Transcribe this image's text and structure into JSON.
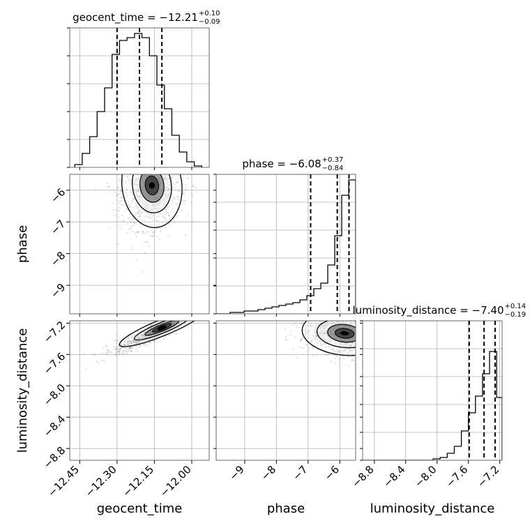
{
  "chart_data": {
    "type": "corner",
    "parameters": [
      "geocent_time",
      "phase",
      "luminosity_distance"
    ],
    "titles": [
      {
        "param": "geocent_time",
        "label": "geocent_time = ",
        "median": "−12.21",
        "plus": "+0.10",
        "minus": "−0.09"
      },
      {
        "param": "phase",
        "label": "phase = ",
        "median": "−6.08",
        "plus": "+0.37",
        "minus": "−0.84"
      },
      {
        "param": "luminosity_distance",
        "label": "luminosity_distance = ",
        "median": "−7.40",
        "plus": "+0.14",
        "minus": "−0.19"
      }
    ],
    "axes": {
      "geocent_time": {
        "range": [
          -12.49,
          -11.93
        ],
        "ticks": [
          -12.45,
          -12.3,
          -12.15,
          -12.0
        ],
        "tick_labels": [
          "−12.45",
          "−12.30",
          "−12.15",
          "−12.00"
        ]
      },
      "phase": {
        "range": [
          -9.9,
          -5.5
        ],
        "ticks": [
          -9,
          -8,
          -7,
          -6
        ],
        "tick_labels": [
          "−9",
          "−8",
          "−7",
          "−6"
        ]
      },
      "luminosity_distance": {
        "range": [
          -8.95,
          -7.17
        ],
        "ticks": [
          -8.8,
          -8.4,
          -8.0,
          -7.6,
          -7.2
        ],
        "tick_labels": [
          "−8.8",
          "−8.4",
          "−8.0",
          "−7.6",
          "−7.2"
        ]
      }
    },
    "histograms": [
      {
        "param": "geocent_time",
        "quantiles": [
          -12.3,
          -12.21,
          -12.12
        ],
        "bin_edges": [
          -12.47,
          -12.44,
          -12.41,
          -12.38,
          -12.35,
          -12.32,
          -12.29,
          -12.26,
          -12.23,
          -12.2,
          -12.17,
          -12.14,
          -12.11,
          -12.08,
          -12.05,
          -12.02,
          -11.99,
          -11.96
        ],
        "counts": [
          0.02,
          0.1,
          0.22,
          0.4,
          0.57,
          0.81,
          0.91,
          0.93,
          0.96,
          0.93,
          0.8,
          0.59,
          0.42,
          0.23,
          0.11,
          0.04,
          0.01
        ]
      },
      {
        "param": "phase",
        "quantiles": [
          -6.92,
          -6.08,
          -5.71
        ],
        "bin_edges": [
          -9.9,
          -9.68,
          -9.46,
          -9.24,
          -9.02,
          -8.8,
          -8.58,
          -8.36,
          -8.14,
          -7.92,
          -7.7,
          -7.48,
          -7.26,
          -7.04,
          -6.82,
          -6.6,
          -6.38,
          -6.16,
          -5.94,
          -5.72,
          -5.5
        ],
        "counts": [
          0.0,
          0.0,
          0.01,
          0.01,
          0.02,
          0.02,
          0.03,
          0.04,
          0.05,
          0.06,
          0.07,
          0.08,
          0.1,
          0.13,
          0.18,
          0.22,
          0.35,
          0.56,
          0.85,
          0.96
        ]
      },
      {
        "param": "luminosity_distance",
        "quantiles": [
          -7.59,
          -7.4,
          -7.26
        ],
        "bin_edges": [
          -8.95,
          -8.86,
          -8.77,
          -8.68,
          -8.59,
          -8.5,
          -8.41,
          -8.32,
          -8.23,
          -8.14,
          -8.05,
          -7.96,
          -7.87,
          -7.78,
          -7.69,
          -7.6,
          -7.51,
          -7.42,
          -7.33,
          -7.24,
          -7.17
        ],
        "counts": [
          0.0,
          0.0,
          0.0,
          0.0,
          0.0,
          0.0,
          0.0,
          0.0,
          0.0,
          0.0,
          0.01,
          0.02,
          0.05,
          0.1,
          0.21,
          0.34,
          0.46,
          0.62,
          0.78,
          0.45
        ]
      }
    ],
    "joint": [
      {
        "x": "geocent_time",
        "y": "phase",
        "peak": [
          -12.16,
          -5.85
        ],
        "cov": [
          [
            0.0036,
            0.004
          ],
          [
            0.004,
            0.45
          ]
        ],
        "truncate_y_max": -5.55
      },
      {
        "x": "geocent_time",
        "y": "luminosity_distance",
        "peak": [
          -12.12,
          -7.26
        ],
        "cov": [
          [
            0.0084,
            0.0122
          ],
          [
            0.0122,
            0.0204
          ]
        ],
        "truncate_y_max": -7.18
      },
      {
        "x": "phase",
        "y": "luminosity_distance",
        "peak": [
          -5.85,
          -7.33
        ],
        "cov": [
          [
            0.45,
            -0.02
          ],
          [
            -0.02,
            0.0204
          ]
        ],
        "truncate_x_max": -5.55,
        "truncate_y_max": -7.18
      }
    ],
    "grid": true
  }
}
